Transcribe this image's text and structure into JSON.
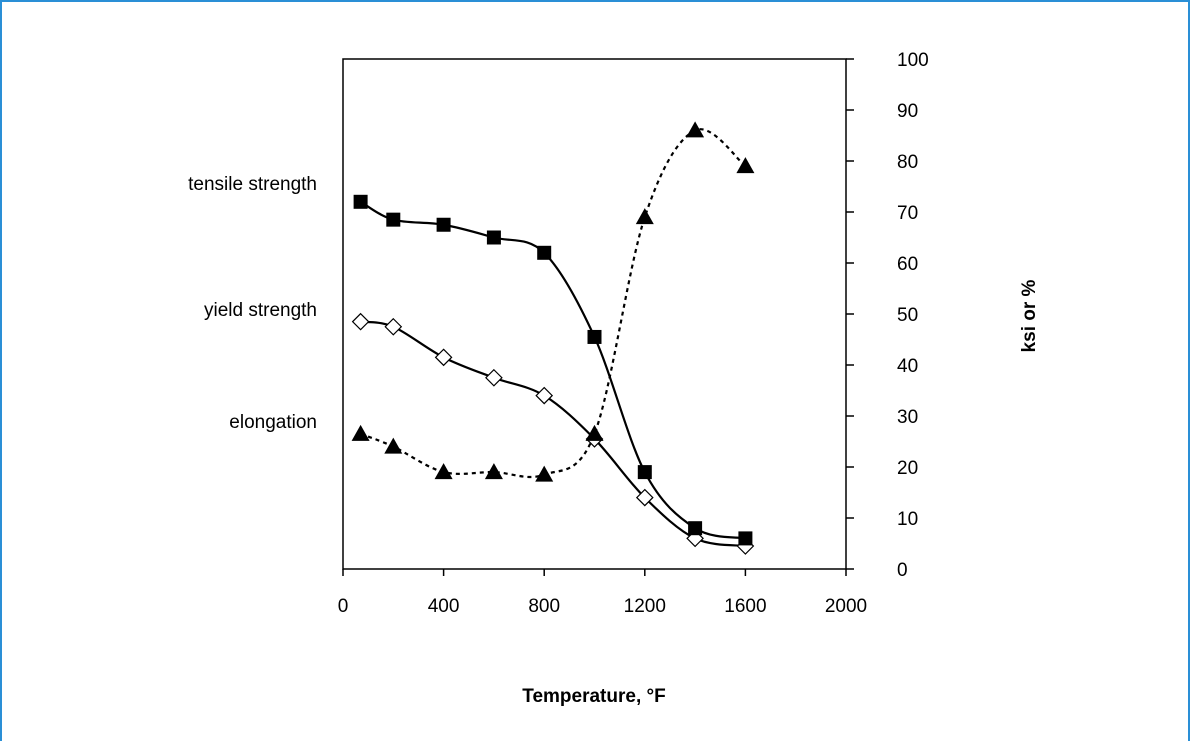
{
  "frame_color": "#2a8fd6",
  "chart_data": {
    "type": "line",
    "xlabel": "Temperature,  °F",
    "ylabel": "ksi or %",
    "xlim": [
      0,
      2000
    ],
    "ylim": [
      0,
      100
    ],
    "x_ticks": [
      "0",
      "400",
      "800",
      "1200",
      "1600",
      "2000"
    ],
    "y_ticks": [
      "0",
      "10",
      "20",
      "30",
      "40",
      "50",
      "60",
      "70",
      "80",
      "90",
      "100"
    ],
    "grid": false,
    "legend": "left, outside plot",
    "series": [
      {
        "name": "tensile strength",
        "marker": "filled-square",
        "line_style": "solid",
        "x": [
          70,
          200,
          400,
          600,
          800,
          1000,
          1200,
          1400,
          1600
        ],
        "y": [
          72,
          68.5,
          67.5,
          65,
          62,
          45.5,
          19,
          8,
          6
        ]
      },
      {
        "name": "yield strength",
        "marker": "open-diamond",
        "line_style": "solid",
        "x": [
          70,
          200,
          400,
          600,
          800,
          1000,
          1200,
          1400,
          1600
        ],
        "y": [
          48.5,
          47.5,
          41.5,
          37.5,
          34,
          25.5,
          14,
          6,
          4.5
        ]
      },
      {
        "name": "elongation",
        "marker": "filled-triangle",
        "line_style": "dotted",
        "x": [
          70,
          200,
          400,
          600,
          800,
          1000,
          1200,
          1400,
          1600
        ],
        "y": [
          26.5,
          24,
          19,
          19,
          18.5,
          26.5,
          69,
          86,
          79
        ]
      }
    ]
  }
}
